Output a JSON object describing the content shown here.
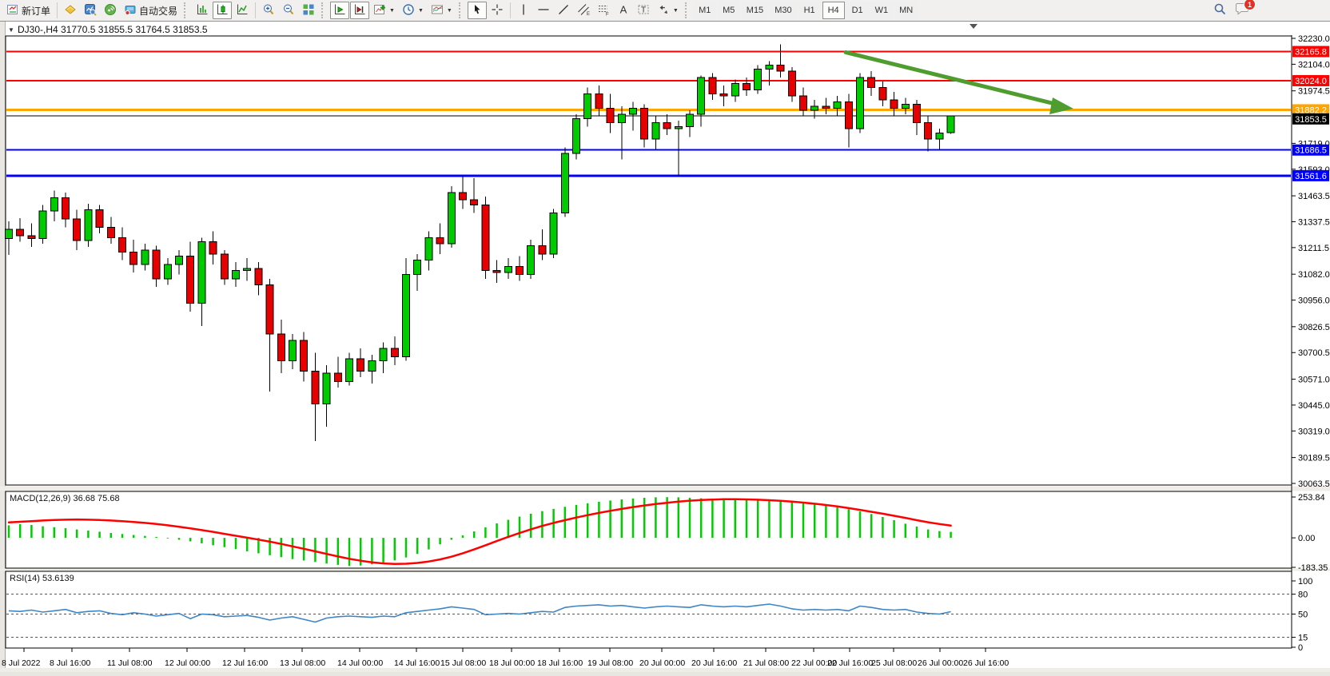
{
  "toolbar": {
    "new_order_label": "新订单",
    "autotrading_label": "自动交易",
    "timeframes": [
      "M1",
      "M5",
      "M15",
      "M30",
      "H1",
      "H4",
      "D1",
      "W1",
      "MN"
    ],
    "active_timeframe": "H4",
    "notification_badge": "1"
  },
  "window": {
    "title_text": "DJ30-,H4  31770.5 31855.5 31764.5 31853.5"
  },
  "chart_data": {
    "type": "candlestick",
    "symbol": "DJ30-",
    "period": "H4",
    "last_ohlc": {
      "open": 31770.5,
      "high": 31855.5,
      "low": 31764.5,
      "close": 31853.5
    },
    "colors": {
      "bull": "#00CB00",
      "bear": "#E60000",
      "candle_outline": "#000000",
      "macd_hist": "#00CC00",
      "macd_signal": "#FF0000",
      "rsi_line": "#3E86C6",
      "arrow": "#4F9D2F",
      "support_line": "#0000FF",
      "resistance_line": "#FF0000",
      "pivot_line": "#FFA500"
    },
    "price_axis": {
      "max": 32230.0,
      "min": 30063.5,
      "ticks": [
        "32230.0",
        "32104.0",
        "31974.5",
        "31719.0",
        "31593.0",
        "31463.5",
        "31337.5",
        "31211.5",
        "31082.0",
        "30956.0",
        "30826.5",
        "30700.5",
        "30571.0",
        "30445.0",
        "30319.0",
        "30189.5",
        "30063.5"
      ]
    },
    "hlines": [
      {
        "label": "32165.8",
        "price": 32165.8,
        "color": "#FF0000",
        "width": 2
      },
      {
        "label": "32024.0",
        "price": 32024.0,
        "color": "#FF0000",
        "width": 2
      },
      {
        "label": "31882.2",
        "price": 31882.2,
        "color": "#FFA500",
        "width": 3
      },
      {
        "label": "31853.5",
        "price": 31853.5,
        "color": "#000000",
        "width": 1
      },
      {
        "label": "31686.5",
        "price": 31686.5,
        "color": "#0000FF",
        "width": 2
      },
      {
        "label": "31561.6",
        "price": 31561.6,
        "color": "#0000FF",
        "width": 3
      }
    ],
    "trend_arrow": {
      "from_price": 32162,
      "to_price": 31900,
      "color": "#4F9D2F"
    },
    "time_axis": {
      "labels": [
        "8 Jul 2022",
        "8 Jul 16:00",
        "11 Jul 08:00",
        "12 Jul 00:00",
        "12 Jul 16:00",
        "13 Jul 08:00",
        "14 Jul 00:00",
        "14 Jul 16:00",
        "15 Jul 08:00",
        "18 Jul 00:00",
        "18 Jul 16:00",
        "19 Jul 08:00",
        "20 Jul 00:00",
        "20 Jul 16:00",
        "21 Jul 08:00",
        "22 Jul 00:00",
        "22 Jul 16:00",
        "25 Jul 08:00",
        "26 Jul 00:00",
        "26 Jul 16:00"
      ]
    },
    "candles": [
      [
        31255,
        31340,
        31175,
        31300
      ],
      [
        31300,
        31355,
        31240,
        31270
      ],
      [
        31270,
        31330,
        31215,
        31255
      ],
      [
        31255,
        31420,
        31230,
        31390
      ],
      [
        31390,
        31490,
        31340,
        31455
      ],
      [
        31455,
        31480,
        31310,
        31350
      ],
      [
        31350,
        31395,
        31200,
        31245
      ],
      [
        31245,
        31425,
        31215,
        31395
      ],
      [
        31395,
        31420,
        31280,
        31310
      ],
      [
        31310,
        31360,
        31230,
        31260
      ],
      [
        31260,
        31310,
        31150,
        31190
      ],
      [
        31190,
        31250,
        31090,
        31130
      ],
      [
        31130,
        31230,
        31100,
        31200
      ],
      [
        31200,
        31220,
        31020,
        31060
      ],
      [
        31060,
        31160,
        31030,
        31130
      ],
      [
        31130,
        31200,
        31080,
        31170
      ],
      [
        31170,
        31240,
        30900,
        30940
      ],
      [
        30940,
        31260,
        30830,
        31240
      ],
      [
        31240,
        31290,
        31130,
        31180
      ],
      [
        31180,
        31200,
        31030,
        31060
      ],
      [
        31060,
        31140,
        31020,
        31100
      ],
      [
        31100,
        31160,
        31050,
        31110
      ],
      [
        31110,
        31140,
        30980,
        31030
      ],
      [
        31030,
        31060,
        30510,
        30790
      ],
      [
        30790,
        30860,
        30600,
        30660
      ],
      [
        30660,
        30790,
        30620,
        30760
      ],
      [
        30760,
        30800,
        30560,
        30610
      ],
      [
        30610,
        30700,
        30270,
        30450
      ],
      [
        30450,
        30640,
        30340,
        30600
      ],
      [
        30600,
        30680,
        30530,
        30560
      ],
      [
        30560,
        30700,
        30540,
        30670
      ],
      [
        30670,
        30720,
        30580,
        30610
      ],
      [
        30610,
        30690,
        30550,
        30660
      ],
      [
        30660,
        30750,
        30600,
        30720
      ],
      [
        30720,
        30780,
        30640,
        30680
      ],
      [
        30680,
        31160,
        30660,
        31080
      ],
      [
        31080,
        31180,
        31000,
        31150
      ],
      [
        31150,
        31290,
        31100,
        31260
      ],
      [
        31260,
        31330,
        31180,
        31230
      ],
      [
        31230,
        31510,
        31210,
        31480
      ],
      [
        31480,
        31560,
        31400,
        31445
      ],
      [
        31445,
        31550,
        31380,
        31420
      ],
      [
        31420,
        31460,
        31060,
        31100
      ],
      [
        31100,
        31150,
        31040,
        31090
      ],
      [
        31090,
        31160,
        31060,
        31120
      ],
      [
        31120,
        31170,
        31050,
        31080
      ],
      [
        31080,
        31250,
        31060,
        31220
      ],
      [
        31220,
        31300,
        31150,
        31180
      ],
      [
        31180,
        31400,
        31160,
        31380
      ],
      [
        31380,
        31700,
        31360,
        31670
      ],
      [
        31670,
        31860,
        31640,
        31840
      ],
      [
        31840,
        31990,
        31800,
        31960
      ],
      [
        31960,
        32000,
        31850,
        31890
      ],
      [
        31890,
        31960,
        31770,
        31820
      ],
      [
        31820,
        31900,
        31640,
        31860
      ],
      [
        31860,
        31920,
        31780,
        31890
      ],
      [
        31890,
        31910,
        31700,
        31740
      ],
      [
        31740,
        31850,
        31690,
        31820
      ],
      [
        31820,
        31860,
        31760,
        31790
      ],
      [
        31790,
        31830,
        31560,
        31800
      ],
      [
        31800,
        31880,
        31750,
        31860
      ],
      [
        31860,
        32050,
        31800,
        32040
      ],
      [
        32040,
        32060,
        31930,
        31960
      ],
      [
        31960,
        32000,
        31900,
        31950
      ],
      [
        31950,
        32030,
        31920,
        32010
      ],
      [
        32010,
        32040,
        31950,
        31980
      ],
      [
        31980,
        32100,
        31960,
        32080
      ],
      [
        32080,
        32120,
        32000,
        32100
      ],
      [
        32100,
        32200,
        32040,
        32070
      ],
      [
        32070,
        32090,
        31920,
        31950
      ],
      [
        31950,
        31990,
        31850,
        31880
      ],
      [
        31880,
        31930,
        31840,
        31900
      ],
      [
        31900,
        31940,
        31860,
        31890
      ],
      [
        31890,
        31950,
        31850,
        31920
      ],
      [
        31920,
        31960,
        31700,
        31790
      ],
      [
        31790,
        32060,
        31770,
        32040
      ],
      [
        32040,
        32070,
        31950,
        31990
      ],
      [
        31990,
        32020,
        31900,
        31930
      ],
      [
        31930,
        31970,
        31850,
        31890
      ],
      [
        31890,
        31940,
        31860,
        31910
      ],
      [
        31910,
        31930,
        31760,
        31820
      ],
      [
        31820,
        31850,
        31680,
        31740
      ],
      [
        31740,
        31790,
        31690,
        31770
      ],
      [
        31770.5,
        31855.5,
        31764.5,
        31853.5
      ]
    ],
    "indicators": [
      {
        "name": "MACD",
        "label": "MACD(12,26,9) 36.68 75.68",
        "ticks": [
          "253.84",
          "0.00",
          "-183.35"
        ],
        "range": [
          -183.35,
          253.84
        ],
        "histogram": [
          78,
          85,
          80,
          72,
          66,
          60,
          52,
          45,
          38,
          30,
          24,
          18,
          12,
          6,
          -4,
          -12,
          -22,
          -34,
          -46,
          -58,
          -70,
          -84,
          -96,
          -108,
          -120,
          -132,
          -141,
          -150,
          -160,
          -168,
          -175,
          -172,
          -165,
          -155,
          -140,
          -122,
          -100,
          -72,
          -40,
          -12,
          15,
          40,
          65,
          90,
          112,
          132,
          150,
          166,
          180,
          193,
          205,
          215,
          224,
          232,
          239,
          245,
          249,
          252,
          253,
          252,
          249,
          246,
          242,
          239,
          237,
          236,
          234,
          231,
          227,
          222,
          216,
          209,
          200,
          190,
          178,
          164,
          148,
          130,
          110,
          88,
          70,
          52,
          42,
          37
        ],
        "signal": [
          96,
          100,
          104,
          108,
          111,
          113,
          114,
          113,
          111,
          108,
          104,
          99,
          93,
          86,
          78,
          69,
          59,
          48,
          37,
          25,
          13,
          1,
          -11,
          -24,
          -38,
          -53,
          -68,
          -84,
          -100,
          -116,
          -130,
          -142,
          -152,
          -159,
          -162,
          -161,
          -156,
          -147,
          -134,
          -117,
          -96,
          -72,
          -46,
          -20,
          6,
          30,
          53,
          74,
          93,
          110,
          126,
          141,
          155,
          168,
          180,
          191,
          201,
          210,
          218,
          225,
          231,
          235,
          238,
          240,
          240,
          239,
          237,
          234,
          230,
          225,
          219,
          212,
          204,
          195,
          185,
          174,
          162,
          150,
          137,
          124,
          110,
          97,
          86,
          76
        ]
      },
      {
        "name": "RSI",
        "label": "RSI(14) 53.6139",
        "ticks": [
          "100",
          "80",
          "50",
          "15",
          "0"
        ],
        "levels": [
          80,
          50,
          15
        ],
        "range": [
          0,
          100
        ],
        "values": [
          55,
          54,
          56,
          53,
          55,
          57,
          52,
          54,
          55,
          51,
          49,
          52,
          50,
          47,
          49,
          51,
          43,
          50,
          49,
          46,
          47,
          48,
          45,
          41,
          44,
          46,
          42,
          38,
          44,
          46,
          47,
          46,
          45,
          47,
          46,
          52,
          54,
          56,
          58,
          61,
          59,
          57,
          49,
          50,
          51,
          50,
          52,
          54,
          53,
          60,
          62,
          63,
          64,
          62,
          63,
          61,
          59,
          61,
          62,
          61,
          60,
          64,
          62,
          61,
          62,
          61,
          63,
          65,
          62,
          58,
          56,
          57,
          56,
          57,
          55,
          62,
          60,
          57,
          56,
          57,
          53,
          51,
          50,
          53.6
        ]
      }
    ]
  }
}
